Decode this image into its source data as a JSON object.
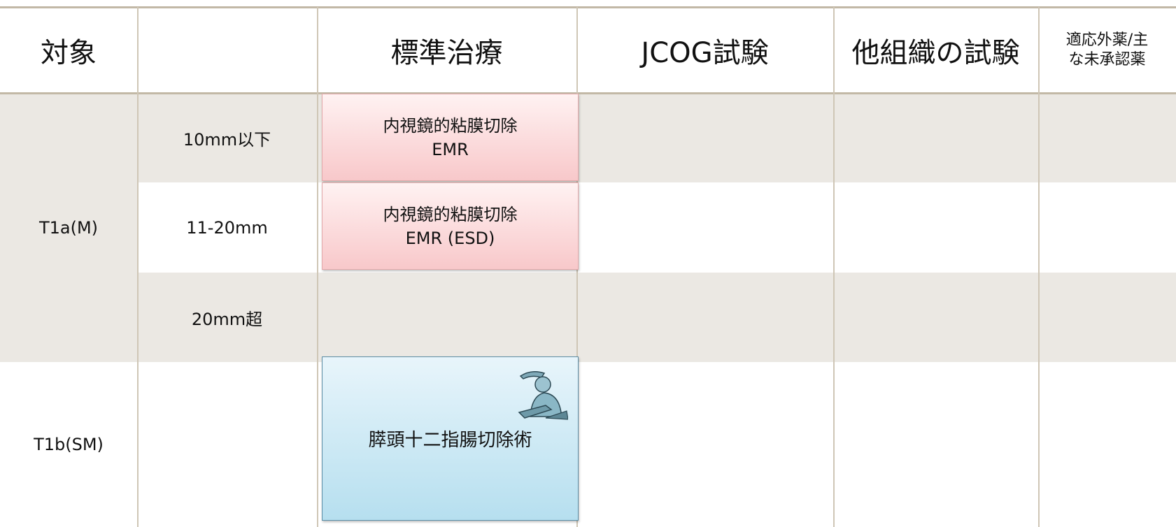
{
  "header": {
    "target": "対象",
    "standard": "標準治療",
    "jcog": "JCOG試験",
    "other": "他組織の試験",
    "offlabel": "適応外薬/主な未承認薬"
  },
  "groups": [
    {
      "label": "T1a(M)",
      "rows": [
        "10mm以下",
        "11-20mm",
        "20mm超"
      ]
    },
    {
      "label": "T1b(SM)"
    }
  ],
  "treatments": [
    {
      "lines": [
        "内視鏡的粘膜切除",
        "EMR"
      ]
    },
    {
      "lines": [
        "内視鏡的粘膜切除",
        "EMR (ESD)"
      ]
    },
    {
      "lines": [
        "膵頭十二指腸切除術"
      ]
    }
  ]
}
